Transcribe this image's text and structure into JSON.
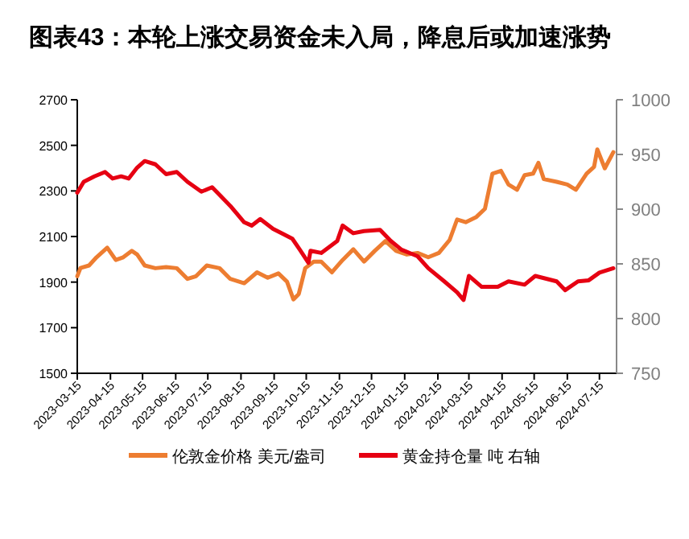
{
  "chart_data": {
    "type": "line",
    "title": "图表43：本轮上涨交易资金未入局，降息后或加速涨势",
    "xlim": [
      "2023-03-15",
      "2024-07-31"
    ],
    "xticks": [
      "2023-03-15",
      "2023-04-15",
      "2023-05-15",
      "2023-06-15",
      "2023-07-15",
      "2023-08-15",
      "2023-09-15",
      "2023-10-15",
      "2023-11-15",
      "2023-12-15",
      "2024-01-15",
      "2024-02-15",
      "2024-03-15",
      "2024-04-15",
      "2024-05-15",
      "2024-06-15",
      "2024-07-15"
    ],
    "ylim": [
      1500,
      2700
    ],
    "yticks": [
      1500,
      1700,
      1900,
      2100,
      2300,
      2500,
      2700
    ],
    "y2lim": [
      750,
      1000
    ],
    "y2ticks": [
      750,
      800,
      850,
      900,
      950,
      1000
    ],
    "legend": "bottom",
    "line_style": "solid",
    "marker": "none",
    "series": [
      {
        "name": "伦敦金价格 美元/盎司",
        "color": "#ed7d31",
        "x": [
          "2023-03-15",
          "2023-03-18",
          "2023-03-26",
          "2023-04-02",
          "2023-04-12",
          "2023-04-20",
          "2023-04-27",
          "2023-05-05",
          "2023-05-10",
          "2023-05-17",
          "2023-05-27",
          "2023-06-06",
          "2023-06-16",
          "2023-06-26",
          "2023-07-04",
          "2023-07-14",
          "2023-07-26",
          "2023-08-05",
          "2023-08-18",
          "2023-08-30",
          "2023-09-09",
          "2023-09-19",
          "2023-09-27",
          "2023-10-03",
          "2023-10-08",
          "2023-10-14",
          "2023-10-22",
          "2023-10-29",
          "2023-11-08",
          "2023-11-18",
          "2023-11-28",
          "2023-12-08",
          "2023-12-18",
          "2023-12-28",
          "2024-01-07",
          "2024-01-17",
          "2024-01-27",
          "2024-02-06",
          "2024-02-16",
          "2024-02-26",
          "2024-03-04",
          "2024-03-12",
          "2024-03-22",
          "2024-03-30",
          "2024-04-06",
          "2024-04-14",
          "2024-04-21",
          "2024-04-29",
          "2024-05-06",
          "2024-05-14",
          "2024-05-19",
          "2024-05-24",
          "2024-06-05",
          "2024-06-15",
          "2024-06-23",
          "2024-07-03",
          "2024-07-10",
          "2024-07-13",
          "2024-07-20",
          "2024-07-28"
        ],
        "values": [
          1926,
          1962,
          1973,
          2009,
          2051,
          1997,
          2009,
          2037,
          2021,
          1973,
          1961,
          1966,
          1961,
          1914,
          1926,
          1973,
          1961,
          1914,
          1895,
          1943,
          1919,
          1938,
          1902,
          1824,
          1848,
          1961,
          1990,
          1990,
          1943,
          1997,
          2044,
          1990,
          2037,
          2080,
          2037,
          2021,
          2028,
          2009,
          2028,
          2085,
          2175,
          2163,
          2186,
          2222,
          2376,
          2388,
          2328,
          2305,
          2369,
          2376,
          2423,
          2352,
          2340,
          2328,
          2305,
          2376,
          2406,
          2482,
          2399,
          2470
        ]
      },
      {
        "name": "黄金持仓量 吨 右轴",
        "color": "#e60012",
        "axis": "y2",
        "x": [
          "2023-03-15",
          "2023-03-21",
          "2023-03-31",
          "2023-04-10",
          "2023-04-17",
          "2023-04-25",
          "2023-05-02",
          "2023-05-10",
          "2023-05-17",
          "2023-05-27",
          "2023-06-06",
          "2023-06-16",
          "2023-06-26",
          "2023-07-09",
          "2023-07-19",
          "2023-07-26",
          "2023-08-05",
          "2023-08-18",
          "2023-08-25",
          "2023-09-02",
          "2023-09-14",
          "2023-09-24",
          "2023-10-02",
          "2023-10-09",
          "2023-10-17",
          "2023-10-19",
          "2023-10-29",
          "2023-11-13",
          "2023-11-18",
          "2023-11-28",
          "2023-12-08",
          "2023-12-23",
          "2024-01-02",
          "2024-01-12",
          "2024-01-27",
          "2024-02-06",
          "2024-02-21",
          "2024-03-04",
          "2024-03-10",
          "2024-03-15",
          "2024-03-27",
          "2024-04-11",
          "2024-04-21",
          "2024-05-06",
          "2024-05-16",
          "2024-06-05",
          "2024-06-13",
          "2024-06-25",
          "2024-07-05",
          "2024-07-15",
          "2024-07-28"
        ],
        "values": [
          915,
          925,
          930,
          934,
          928,
          930,
          928,
          938,
          944,
          941,
          932,
          934,
          925,
          916,
          920,
          913,
          903,
          888,
          885,
          891,
          882,
          877,
          873,
          863,
          851,
          862,
          860,
          871,
          885,
          878,
          880,
          881,
          871,
          863,
          857,
          846,
          834,
          824,
          817,
          839,
          829,
          829,
          834,
          831,
          839,
          834,
          826,
          834,
          835,
          842,
          846
        ]
      }
    ]
  }
}
